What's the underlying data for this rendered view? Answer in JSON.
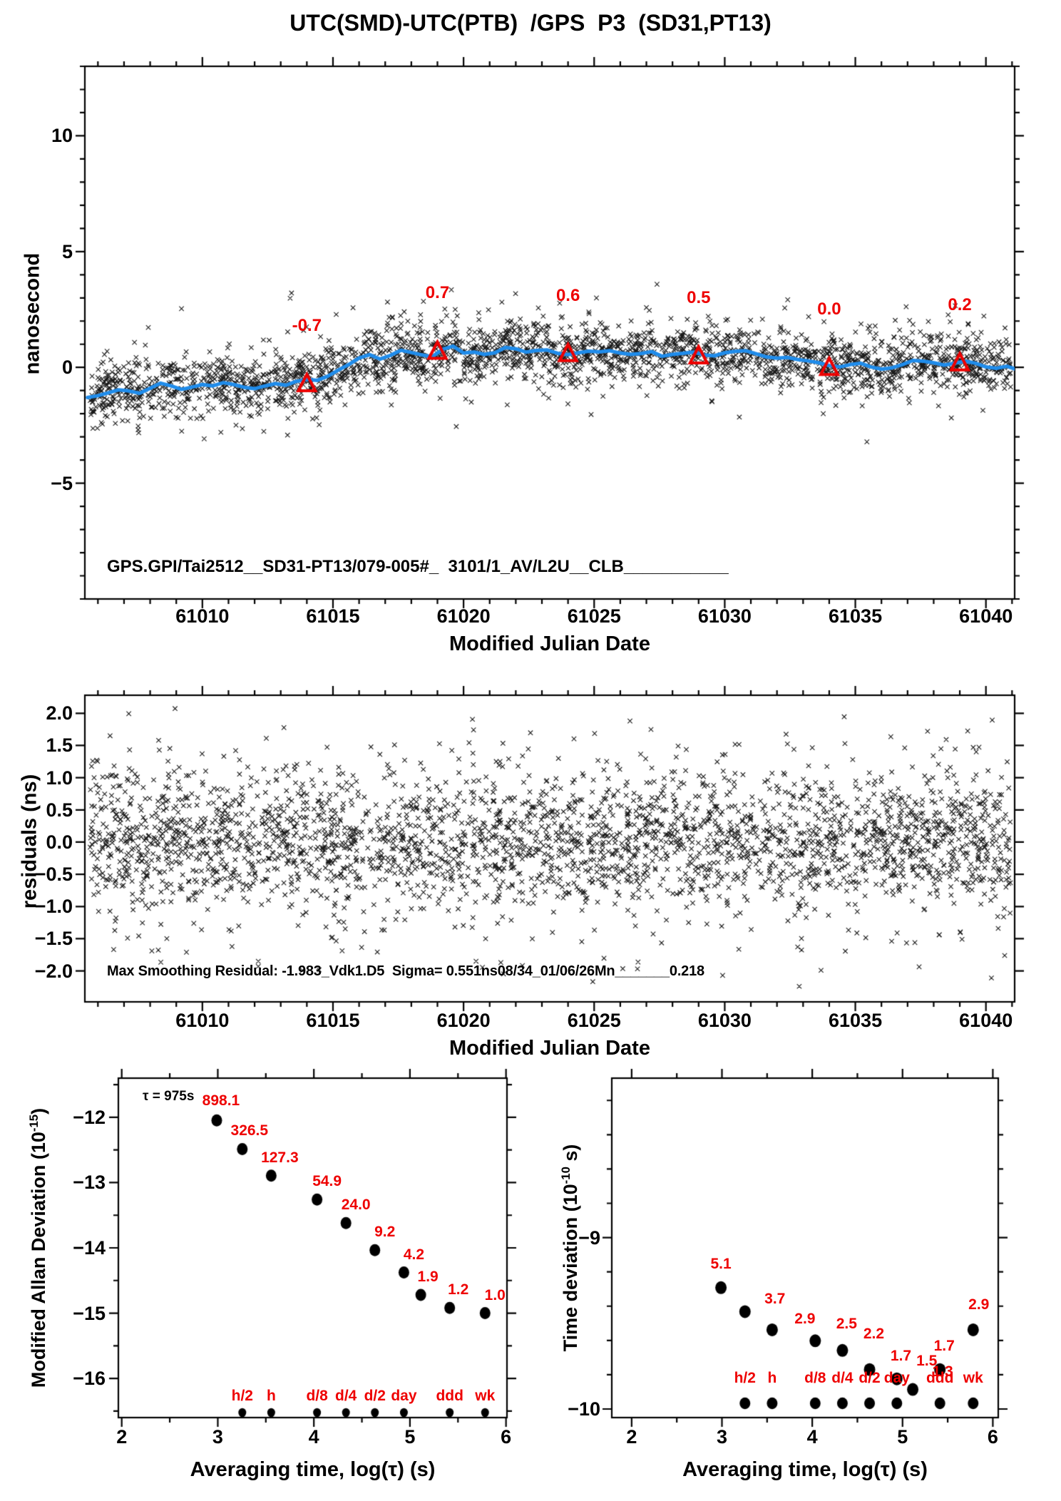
{
  "page_title": "UTC(SMD)-UTC(PTB)  /GPS  P3  (SD31,PT13)",
  "colors": {
    "red": "#ee0000",
    "blue": "#1f8ceb",
    "marker": "#000000",
    "background": "#ffffff"
  },
  "chart_data": [
    {
      "id": "phase",
      "type": "scatter",
      "title": "UTC(SMD)-UTC(PTB)  /GPS  P3  (SD31,PT13)",
      "xlabel": "Modified Julian Date",
      "ylabel": "nanosecond",
      "xlim": [
        61005.5,
        61041.1
      ],
      "ylim": [
        -10,
        13
      ],
      "xticks": [
        61010,
        61015,
        61020,
        61025,
        61030,
        61035,
        61040
      ],
      "xtick_labels": [
        "61010",
        "61015",
        "61020",
        "61025",
        "61030",
        "61035",
        "61040"
      ],
      "x_minor_step": 1,
      "yticks": [
        -5,
        0,
        5,
        10
      ],
      "ytick_labels": [
        "−5",
        "0",
        "5",
        "10"
      ],
      "y_minor_step": 1,
      "annotation": "GPS.GPI/Tai2512__SD31-PT13/079-005#_  3101/1_AV/L2U__CLB___________",
      "smoothed_series": {
        "name": "smoothed phase (ns)",
        "x_start": 61005.6,
        "x_step": 0.4,
        "values": [
          -1.3,
          -1.22,
          -1.1,
          -0.97,
          -1.02,
          -1.12,
          -0.9,
          -0.68,
          -0.8,
          -0.95,
          -0.85,
          -0.74,
          -0.8,
          -0.66,
          -0.74,
          -0.86,
          -0.92,
          -0.8,
          -0.7,
          -0.77,
          -0.6,
          -0.52,
          -0.56,
          -0.38,
          -0.12,
          0.12,
          0.4,
          0.55,
          0.36,
          0.52,
          0.74,
          0.64,
          0.54,
          0.46,
          0.78,
          0.92,
          0.62,
          0.66,
          0.56,
          0.63,
          0.86,
          0.8,
          0.66,
          0.73,
          0.75,
          0.61,
          0.55,
          0.63,
          0.7,
          0.67,
          0.72,
          0.62,
          0.56,
          0.6,
          0.68,
          0.48,
          0.56,
          0.61,
          0.66,
          0.54,
          0.5,
          0.63,
          0.69,
          0.72,
          0.59,
          0.45,
          0.4,
          0.43,
          0.34,
          0.28,
          0.2,
          0.08,
          0.02,
          0.12,
          0.18,
          0.02,
          -0.08,
          -0.02,
          0.12,
          0.3,
          0.27,
          0.2,
          0.1,
          0.18,
          0.27,
          0.18,
          0.02,
          -0.04,
          0.05,
          -0.1
        ]
      },
      "scatter_gen": {
        "marker": "x",
        "n": 2750,
        "sigma_core": 0.6,
        "sigma_tail": 1.2,
        "tail_frac": 0.18,
        "clip": [
          -3.3,
          3.6
        ],
        "seed": 1357911
      },
      "averages": {
        "marker": "triangle",
        "x": [
          61014,
          61019,
          61024,
          61029,
          61034,
          61039
        ],
        "values": [
          -0.7,
          0.7,
          0.6,
          0.5,
          0.0,
          0.2
        ],
        "labels": [
          "-0.7",
          "0.7",
          "0.6",
          "0.5",
          "0.0",
          "0.2"
        ]
      }
    },
    {
      "id": "residuals",
      "type": "scatter",
      "xlabel": "Modified Julian Date",
      "ylabel": "residuals (ns)",
      "xlim": [
        61005.5,
        61041.1
      ],
      "ylim": [
        -2.48,
        2.28
      ],
      "xticks": [
        61010,
        61015,
        61020,
        61025,
        61030,
        61035,
        61040
      ],
      "xtick_labels": [
        "61010",
        "61015",
        "61020",
        "61025",
        "61030",
        "61035",
        "61040"
      ],
      "x_minor_step": 1,
      "yticks": [
        2.0,
        1.5,
        1.0,
        0.5,
        0.0,
        -0.5,
        -1.0,
        -1.5,
        -2.0
      ],
      "ytick_labels": [
        "2.0",
        "1.5",
        "1.0",
        "0.5",
        "0.0",
        "−0.5",
        "−1.0",
        "−1.5",
        "−2.0"
      ],
      "annotation": "Max Smoothing Residual: -1.983_Vdk1.D5  Sigma= 0.551ns08/34_01/06/26Mn_______0.218",
      "scatter_gen": {
        "marker": "x",
        "n": 3000,
        "sigma_core": 0.52,
        "sigma_tail": 0.95,
        "tail_frac": 0.2,
        "clip": [
          -2.3,
          2.1
        ],
        "seed": 246802
      }
    },
    {
      "id": "mdev",
      "type": "scatter",
      "xlabel": "Averaging time, log(τ) (s)",
      "ylabel_parts": {
        "prefix": "Modified Allan Deviation (10",
        "sup": "-15",
        "suffix": ")"
      },
      "xlim": [
        1.965,
        6.01
      ],
      "ylim": [
        -16.6,
        -11.4
      ],
      "xticks": [
        2,
        3,
        4,
        5,
        6
      ],
      "xtick_labels": [
        "2",
        "3",
        "4",
        "5",
        "6"
      ],
      "x_minor_step": 0.5,
      "yticks": [
        -12,
        -13,
        -14,
        -15,
        -16
      ],
      "ytick_labels": [
        "−12",
        "−13",
        "−14",
        "−15",
        "−16"
      ],
      "y_minor_step": 0.5,
      "tau_note": "τ = 975s",
      "points": {
        "log_tau": [
          2.989,
          3.255,
          3.556,
          4.033,
          4.334,
          4.635,
          4.937,
          5.113,
          5.414,
          5.782
        ],
        "values_1e15": [
          898.1,
          326.5,
          127.3,
          54.9,
          24.0,
          9.2,
          4.2,
          1.9,
          1.2,
          1.0
        ],
        "y_log": [
          -12.047,
          -12.486,
          -12.895,
          -13.26,
          -13.62,
          -14.036,
          -14.377,
          -14.721,
          -14.921,
          -15.0
        ],
        "value_labels": [
          "898.1",
          "326.5",
          "127.3",
          "54.9",
          "24.0",
          "9.2",
          "4.2",
          "1.9",
          "1.2",
          "1.0"
        ],
        "label_dx": [
          6,
          10,
          12,
          14,
          14,
          14,
          14,
          10,
          12,
          14
        ],
        "label_dy": [
          -18,
          -16,
          -16,
          -16,
          -16,
          -16,
          -16,
          -16,
          -16,
          -16
        ]
      },
      "period_markers": {
        "labels": [
          "h/2",
          "h",
          "d/8",
          "d/4",
          "d/2",
          "day",
          "ddd",
          "wk"
        ],
        "log_tau": [
          3.255,
          3.556,
          4.033,
          4.334,
          4.635,
          4.937,
          5.414,
          5.782
        ]
      }
    },
    {
      "id": "tdev",
      "type": "scatter",
      "xlabel": "Averaging time, log(τ) (s)",
      "ylabel_parts": {
        "prefix": "Time deviation (10",
        "sup": "-10",
        "suffix": " s)"
      },
      "xlim": [
        1.78,
        6.06
      ],
      "ylim": [
        -10.05,
        -8.07
      ],
      "xticks": [
        2,
        3,
        4,
        5,
        6
      ],
      "xtick_labels": [
        "2",
        "3",
        "4",
        "5",
        "6"
      ],
      "x_minor_step": 0.5,
      "yticks": [
        -9,
        -10
      ],
      "ytick_labels": [
        "−9",
        "−10"
      ],
      "y_minor_step": 0.2,
      "points": {
        "log_tau": [
          2.989,
          3.255,
          3.556,
          4.033,
          4.334,
          4.635,
          4.937,
          5.113,
          5.414,
          5.782
        ],
        "values_1e10": [
          5.1,
          3.7,
          2.9,
          2.5,
          2.2,
          1.7,
          1.5,
          1.3,
          1.7,
          2.9
        ],
        "y_log": [
          -9.292,
          -9.432,
          -9.538,
          -9.602,
          -9.658,
          -9.77,
          -9.824,
          -9.886,
          -9.77,
          -9.538
        ],
        "value_labels": [
          "5.1",
          "3.7",
          "2.9",
          "2.5",
          "2.2",
          "1.7",
          "1.5",
          "1.3",
          "1.7",
          "2.9"
        ],
        "label_dx": [
          0,
          42,
          46,
          44,
          44,
          44,
          42,
          42,
          6,
          8
        ],
        "label_dy": [
          -24,
          -8,
          -6,
          -14,
          -14,
          -10,
          -16,
          -16,
          -24,
          -26
        ]
      },
      "period_markers": {
        "labels": [
          "h/2",
          "h",
          "d/8",
          "d/4",
          "d/2",
          "day",
          "ddd",
          "wk"
        ],
        "log_tau": [
          3.255,
          3.556,
          4.033,
          4.334,
          4.635,
          4.937,
          5.414,
          5.782
        ]
      }
    }
  ]
}
